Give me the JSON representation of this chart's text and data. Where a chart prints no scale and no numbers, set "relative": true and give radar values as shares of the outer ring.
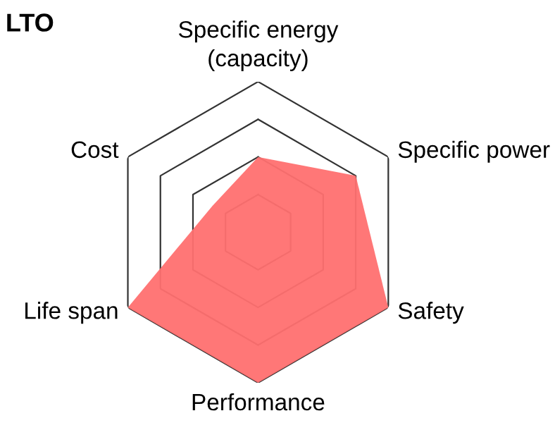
{
  "chart_data": {
    "type": "radar",
    "title": "LTO",
    "relative": true,
    "grid": true,
    "categories": [
      "Specific energy\n(capacity)",
      "Specific power",
      "Safety",
      "Performance",
      "Life span",
      "Cost"
    ],
    "series": [
      {
        "color": "#ff7070",
        "values": [
          0.5,
          0.75,
          1,
          1,
          1,
          0.35
        ]
      }
    ]
  }
}
